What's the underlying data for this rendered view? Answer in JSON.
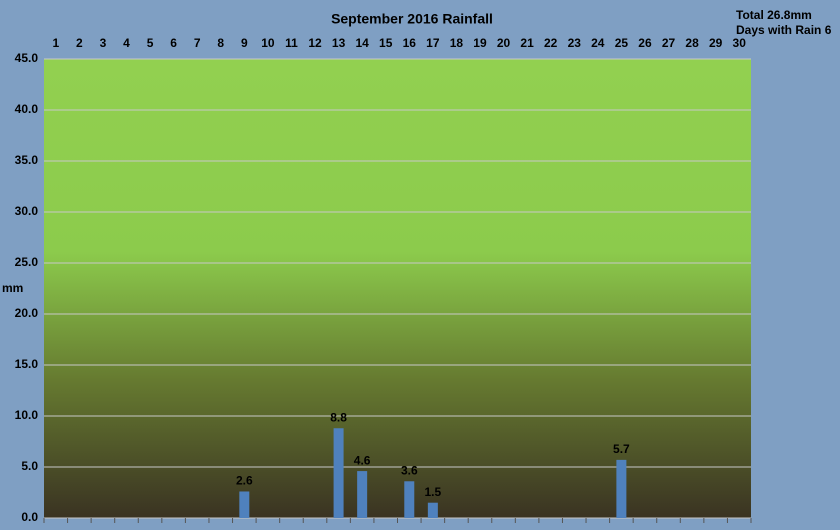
{
  "chart_data": {
    "type": "bar",
    "title": "September 2016 Rainfall",
    "annotations": [
      "Total 26.8mm",
      "Days with Rain 6"
    ],
    "y_label": "mm",
    "categories": [
      "1",
      "2",
      "3",
      "4",
      "5",
      "6",
      "7",
      "8",
      "9",
      "10",
      "11",
      "12",
      "13",
      "14",
      "15",
      "16",
      "17",
      "18",
      "19",
      "20",
      "21",
      "22",
      "23",
      "24",
      "25",
      "26",
      "27",
      "28",
      "29",
      "30"
    ],
    "values": [
      null,
      null,
      null,
      null,
      null,
      null,
      null,
      null,
      2.6,
      null,
      null,
      null,
      8.8,
      4.6,
      null,
      3.6,
      1.5,
      null,
      null,
      null,
      null,
      null,
      null,
      null,
      5.7,
      null,
      null,
      null,
      null,
      null
    ],
    "color": "#4f81bd",
    "ylim": [
      0,
      45
    ],
    "yticks": [
      {
        "value": 0,
        "label": "0.0"
      },
      {
        "value": 5,
        "label": "5.0"
      },
      {
        "value": 10,
        "label": "10.0"
      },
      {
        "value": 15,
        "label": "15.0"
      },
      {
        "value": 20,
        "label": "20.0"
      },
      {
        "value": 25,
        "label": "25.0"
      },
      {
        "value": 30,
        "label": "30.0"
      },
      {
        "value": 35,
        "label": "35.0"
      },
      {
        "value": 40,
        "label": "40.0"
      },
      {
        "value": 45,
        "label": "45.0"
      }
    ],
    "grid": true
  }
}
